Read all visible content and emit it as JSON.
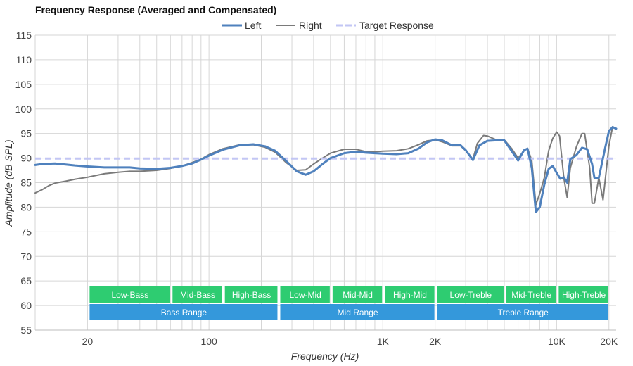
{
  "chart_data": {
    "type": "line",
    "title": "Frequency Response (Averaged and Compensated)",
    "xlabel": "Frequency (Hz)",
    "ylabel": "Amplitude (dB SPL)",
    "x_scale": "log",
    "xlim": [
      10,
      22000
    ],
    "ylim": [
      55,
      115
    ],
    "y_ticks": [
      55,
      60,
      65,
      70,
      75,
      80,
      85,
      90,
      95,
      100,
      105,
      110,
      115
    ],
    "x_ticks": [
      {
        "value": 20,
        "label": "20"
      },
      {
        "value": 100,
        "label": "100"
      },
      {
        "value": 1000,
        "label": "1K"
      },
      {
        "value": 2000,
        "label": "2K"
      },
      {
        "value": 10000,
        "label": "10K"
      },
      {
        "value": 20000,
        "label": "20K"
      }
    ],
    "grid": true,
    "legend_position": "top-center",
    "series": [
      {
        "name": "Left",
        "color": "#4f81bd",
        "points": [
          [
            10,
            88.6
          ],
          [
            11,
            88.8
          ],
          [
            13,
            88.9
          ],
          [
            15,
            88.7
          ],
          [
            17,
            88.5
          ],
          [
            20,
            88.3
          ],
          [
            25,
            88.1
          ],
          [
            30,
            88.1
          ],
          [
            35,
            88.1
          ],
          [
            40,
            87.9
          ],
          [
            50,
            87.8
          ],
          [
            60,
            88.0
          ],
          [
            70,
            88.4
          ],
          [
            80,
            88.9
          ],
          [
            90,
            89.7
          ],
          [
            100,
            90.5
          ],
          [
            120,
            91.7
          ],
          [
            150,
            92.6
          ],
          [
            180,
            92.8
          ],
          [
            210,
            92.4
          ],
          [
            240,
            91.5
          ],
          [
            280,
            89.3
          ],
          [
            320,
            87.3
          ],
          [
            360,
            86.6
          ],
          [
            400,
            87.3
          ],
          [
            450,
            88.8
          ],
          [
            500,
            90.0
          ],
          [
            600,
            91.0
          ],
          [
            700,
            91.3
          ],
          [
            800,
            91.1
          ],
          [
            900,
            91.0
          ],
          [
            1000,
            90.9
          ],
          [
            1200,
            90.8
          ],
          [
            1400,
            91.0
          ],
          [
            1600,
            91.9
          ],
          [
            1800,
            93.2
          ],
          [
            2000,
            93.8
          ],
          [
            2200,
            93.6
          ],
          [
            2500,
            92.6
          ],
          [
            2800,
            92.6
          ],
          [
            3000,
            91.6
          ],
          [
            3300,
            89.6
          ],
          [
            3600,
            92.6
          ],
          [
            4000,
            93.5
          ],
          [
            4500,
            93.6
          ],
          [
            5000,
            93.6
          ],
          [
            5500,
            91.5
          ],
          [
            6000,
            89.5
          ],
          [
            6500,
            91.6
          ],
          [
            6800,
            91.9
          ],
          [
            7200,
            88.0
          ],
          [
            7600,
            79.0
          ],
          [
            8000,
            80.0
          ],
          [
            8500,
            84.6
          ],
          [
            9000,
            87.8
          ],
          [
            9500,
            88.4
          ],
          [
            10000,
            87.0
          ],
          [
            10500,
            85.8
          ],
          [
            11000,
            86.1
          ],
          [
            11500,
            85.0
          ],
          [
            12000,
            89.8
          ],
          [
            13000,
            90.6
          ],
          [
            14000,
            92.1
          ],
          [
            15000,
            91.8
          ],
          [
            16000,
            88.8
          ],
          [
            16500,
            86.0
          ],
          [
            17500,
            86.0
          ],
          [
            19000,
            92.0
          ],
          [
            20000,
            95.5
          ],
          [
            21000,
            96.3
          ],
          [
            22000,
            96.0
          ]
        ]
      },
      {
        "name": "Right",
        "color": "#7a7a7a",
        "points": [
          [
            10,
            82.9
          ],
          [
            11,
            83.6
          ],
          [
            12,
            84.4
          ],
          [
            13,
            84.9
          ],
          [
            15,
            85.3
          ],
          [
            17,
            85.7
          ],
          [
            20,
            86.1
          ],
          [
            25,
            86.8
          ],
          [
            30,
            87.1
          ],
          [
            35,
            87.3
          ],
          [
            40,
            87.3
          ],
          [
            50,
            87.5
          ],
          [
            60,
            87.9
          ],
          [
            70,
            88.4
          ],
          [
            80,
            89.1
          ],
          [
            90,
            89.8
          ],
          [
            100,
            90.7
          ],
          [
            120,
            91.9
          ],
          [
            150,
            92.7
          ],
          [
            180,
            92.7
          ],
          [
            210,
            92.2
          ],
          [
            240,
            91.2
          ],
          [
            280,
            89.0
          ],
          [
            320,
            87.5
          ],
          [
            360,
            87.6
          ],
          [
            400,
            88.8
          ],
          [
            450,
            90.0
          ],
          [
            500,
            91.0
          ],
          [
            600,
            91.8
          ],
          [
            700,
            91.8
          ],
          [
            800,
            91.3
          ],
          [
            900,
            91.3
          ],
          [
            1000,
            91.4
          ],
          [
            1200,
            91.5
          ],
          [
            1400,
            91.9
          ],
          [
            1600,
            92.7
          ],
          [
            1800,
            93.5
          ],
          [
            2000,
            93.7
          ],
          [
            2200,
            93.3
          ],
          [
            2500,
            92.5
          ],
          [
            2800,
            92.5
          ],
          [
            3000,
            91.5
          ],
          [
            3300,
            89.8
          ],
          [
            3500,
            93.0
          ],
          [
            3800,
            94.6
          ],
          [
            4000,
            94.5
          ],
          [
            4500,
            93.7
          ],
          [
            5000,
            93.7
          ],
          [
            5500,
            92.0
          ],
          [
            6000,
            90.0
          ],
          [
            6500,
            91.5
          ],
          [
            6800,
            92.0
          ],
          [
            7200,
            89.5
          ],
          [
            7600,
            80.5
          ],
          [
            8000,
            82.8
          ],
          [
            8500,
            86.0
          ],
          [
            9000,
            91.5
          ],
          [
            9500,
            94.0
          ],
          [
            10000,
            95.3
          ],
          [
            10400,
            94.5
          ],
          [
            11000,
            86.0
          ],
          [
            11500,
            82.0
          ],
          [
            12000,
            88.0
          ],
          [
            13000,
            92.3
          ],
          [
            14000,
            95.0
          ],
          [
            14500,
            95.0
          ],
          [
            15500,
            88.0
          ],
          [
            16000,
            80.8
          ],
          [
            16500,
            80.8
          ],
          [
            17500,
            86.0
          ],
          [
            18500,
            81.5
          ],
          [
            20000,
            92.5
          ],
          [
            21000,
            96.4
          ],
          [
            22000,
            96.0
          ]
        ]
      },
      {
        "name": "Target Response",
        "color": "#c2c6f4",
        "dashed": true,
        "points": [
          [
            10,
            89.9
          ],
          [
            22000,
            89.9
          ]
        ]
      }
    ],
    "bands": [
      {
        "label": "Low-Bass",
        "from": 20,
        "to": 60,
        "row": 1,
        "color": "#2ecc71"
      },
      {
        "label": "Mid-Bass",
        "from": 60,
        "to": 120,
        "row": 1,
        "color": "#2ecc71"
      },
      {
        "label": "High-Bass",
        "from": 120,
        "to": 250,
        "row": 1,
        "color": "#2ecc71"
      },
      {
        "label": "Low-Mid",
        "from": 250,
        "to": 500,
        "row": 1,
        "color": "#2ecc71"
      },
      {
        "label": "Mid-Mid",
        "from": 500,
        "to": 1000,
        "row": 1,
        "color": "#2ecc71"
      },
      {
        "label": "High-Mid",
        "from": 1000,
        "to": 2000,
        "row": 1,
        "color": "#2ecc71"
      },
      {
        "label": "Low-Treble",
        "from": 2000,
        "to": 5000,
        "row": 1,
        "color": "#2ecc71"
      },
      {
        "label": "Mid-Treble",
        "from": 5000,
        "to": 10000,
        "row": 1,
        "color": "#2ecc71"
      },
      {
        "label": "High-Treble",
        "from": 10000,
        "to": 20000,
        "row": 1,
        "color": "#2ecc71"
      },
      {
        "label": "Bass Range",
        "from": 20,
        "to": 250,
        "row": 2,
        "color": "#3498db"
      },
      {
        "label": "Mid Range",
        "from": 250,
        "to": 2000,
        "row": 2,
        "color": "#3498db"
      },
      {
        "label": "Treble Range",
        "from": 2000,
        "to": 20000,
        "row": 2,
        "color": "#3498db"
      }
    ]
  }
}
